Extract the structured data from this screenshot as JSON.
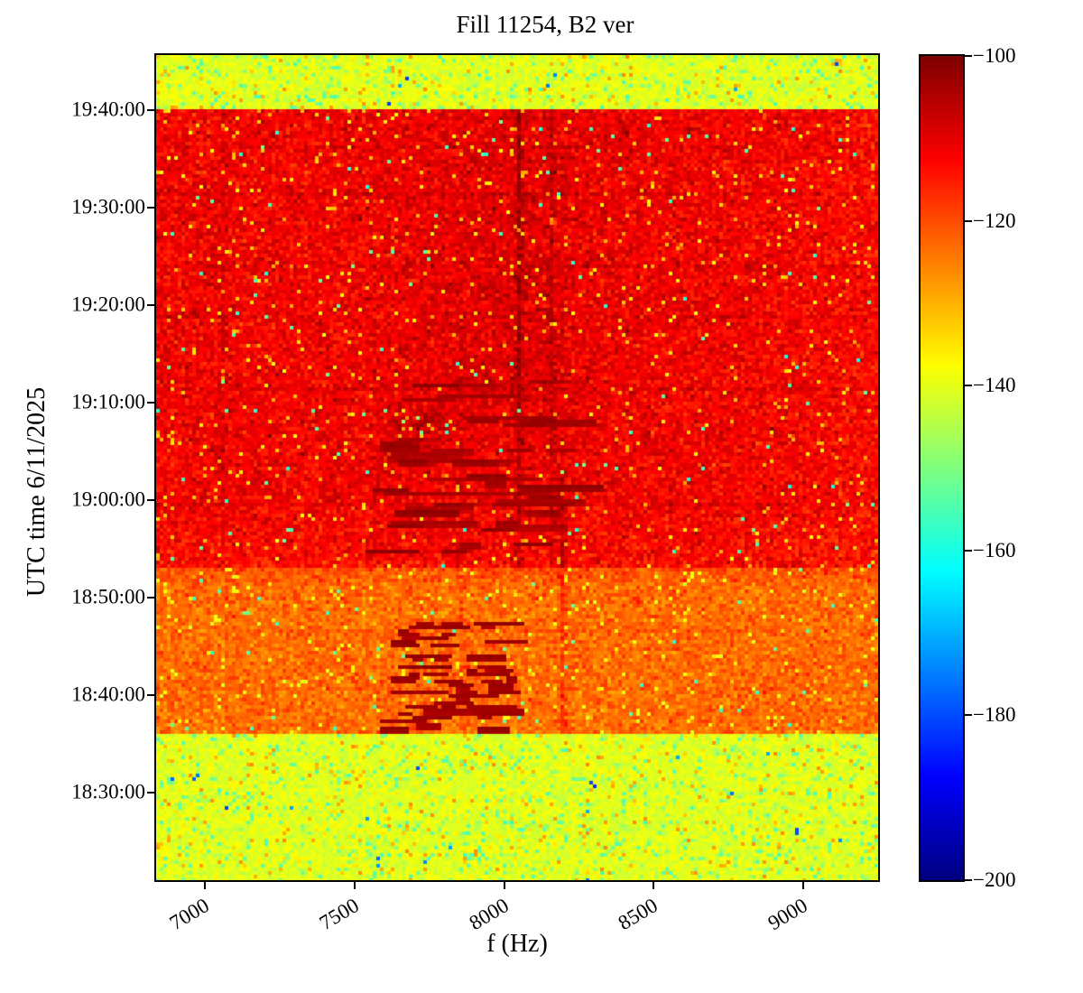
{
  "chart_data": {
    "type": "heatmap",
    "subtype": "spectrogram",
    "title": "Fill 11254, B2 ver",
    "xlabel": "f (Hz)",
    "ylabel": "UTC time 6/11/2025",
    "grid": false,
    "x_axis": {
      "range_hz": [
        6837,
        9250
      ],
      "ticks": [
        {
          "label": "7000",
          "hz": 7000
        },
        {
          "label": "7500",
          "hz": 7500
        },
        {
          "label": "8000",
          "hz": 8000
        },
        {
          "label": "8500",
          "hz": 8500
        },
        {
          "label": "9000",
          "hz": 9000
        }
      ]
    },
    "y_axis": {
      "date": "6/11/2025",
      "range_minutes": [
        1101.0,
        1185.6
      ],
      "ticks": [
        {
          "label": "19:40:00",
          "minutes": 1180
        },
        {
          "label": "19:30:00",
          "minutes": 1170
        },
        {
          "label": "19:20:00",
          "minutes": 1160
        },
        {
          "label": "19:10:00",
          "minutes": 1150
        },
        {
          "label": "19:00:00",
          "minutes": 1140
        },
        {
          "label": "18:50:00",
          "minutes": 1130
        },
        {
          "label": "18:40:00",
          "minutes": 1120
        },
        {
          "label": "18:30:00",
          "minutes": 1110
        }
      ]
    },
    "colorbar": {
      "colormap": "jet",
      "vmin": -200,
      "vmax": -100,
      "ticks": [
        {
          "label": "−100",
          "value": -100
        },
        {
          "label": "−120",
          "value": -120
        },
        {
          "label": "−140",
          "value": -140
        },
        {
          "label": "−160",
          "value": -160
        },
        {
          "label": "−180",
          "value": -180
        },
        {
          "label": "−200",
          "value": -200
        }
      ]
    },
    "bands": [
      {
        "name": "top-cold",
        "noise": "cold",
        "t_start": 1180.0,
        "t_end": 1185.6,
        "mean_db": -140.3
      },
      {
        "name": "hot",
        "noise": "hot",
        "t_start": 1132.9,
        "t_end": 1180.0,
        "mean_db": -111.8
      },
      {
        "name": "warm",
        "noise": "warm",
        "t_start": 1116.0,
        "t_end": 1132.9,
        "mean_db": -123.2
      },
      {
        "name": "bottom-cold",
        "noise": "cold",
        "t_start": 1101.0,
        "t_end": 1116.0,
        "mean_db": -140.3
      }
    ],
    "noise": {
      "hot": {
        "mean": -111.8,
        "sigma": 3.0,
        "speckles": [
          {
            "prob": 0.028,
            "value": -129,
            "spread": 9
          },
          {
            "prob": 0.005,
            "value": -151,
            "spread": 9
          },
          {
            "prob": 0.03,
            "value": -106,
            "spread": 3
          }
        ]
      },
      "warm": {
        "mean": -123.2,
        "sigma": 2.8,
        "speckles": [
          {
            "prob": 0.03,
            "value": -135,
            "spread": 6
          },
          {
            "prob": 0.006,
            "value": -150,
            "spread": 8
          },
          {
            "prob": 0.02,
            "value": -117,
            "spread": 3
          }
        ]
      },
      "cold": {
        "mean": -140.3,
        "sigma": 2.1,
        "speckles": [
          {
            "prob": 0.035,
            "value": -126,
            "spread": 7
          },
          {
            "prob": 0.08,
            "value": -147,
            "spread": 9
          },
          {
            "prob": 0.002,
            "value": -170,
            "spread": 14
          }
        ]
      }
    },
    "hot_shading": {
      "swath": {
        "f_center": 8020,
        "f_sigma": 230,
        "amp": 2.0,
        "t_full": 1152,
        "t_fade_to": 1140
      },
      "bottom_fade": {
        "t_start": 1140,
        "rate_db_per_min": 0.28
      },
      "right_fade": {
        "f_start": 8700,
        "rate_db_per_hz": 0.0022
      }
    },
    "features": {
      "vertical_lines": [
        {
          "f": 7060,
          "t_min": 1140.0,
          "t_max": 1180.0,
          "delta": 2.2,
          "soft": 0.3
        },
        {
          "f": 7862,
          "t_min": 1116.0,
          "t_max": 1158.8,
          "delta": 2.2,
          "soft": 0.3
        },
        {
          "f": 8049,
          "t_min": 1132.9,
          "t_max": 1180.0,
          "delta": 6.0,
          "soft": 0.45
        },
        {
          "f": 8161,
          "t_min": 1132.9,
          "t_max": 1180.0,
          "delta": 3.5,
          "soft": 0.35
        },
        {
          "f": 8191,
          "t_min": 1116.0,
          "t_max": 1143.0,
          "delta": 5.0,
          "soft": 0.45
        }
      ],
      "darker_rows": [
        {
          "t": 1176.3,
          "delta": 1.4
        },
        {
          "t": 1171.5,
          "delta": 1.8
        },
        {
          "t": 1163.9,
          "delta": 1.8
        },
        {
          "t": 1158.8,
          "delta": 1.6
        },
        {
          "t": 1151.3,
          "delta": 1.8
        },
        {
          "t": 1139.4,
          "delta": 1.6
        },
        {
          "t": 1126.4,
          "delta": 1.5
        },
        {
          "t": 1120.7,
          "delta": 1.5
        }
      ],
      "dash_clusters": [
        {
          "name": "mid-burst",
          "seed": 7,
          "count": 46,
          "f_min": 7570,
          "f_max": 8220,
          "len_min_hz": 60,
          "len_max_hz": 360,
          "t_min": 1134.5,
          "t_max": 1152.8,
          "value": -103.2,
          "value_spread": 1.6,
          "thick_frac": 0.4,
          "f_clamp": [
            7540,
            8330
          ]
        },
        {
          "name": "mid-burst-long",
          "seed": 11,
          "count": 7,
          "f_min": 7700,
          "f_max": 8050,
          "len_min_hz": 280,
          "len_max_hz": 430,
          "t_min": 1138.0,
          "t_max": 1150.0,
          "value": -104.5,
          "value_spread": 1.2,
          "thick_frac": 0.3,
          "f_clamp": [
            7540,
            8340
          ]
        },
        {
          "name": "early-burst",
          "seed": 23,
          "count": 62,
          "f_min": 7620,
          "f_max": 8040,
          "len_min_hz": 25,
          "len_max_hz": 190,
          "t_min": 1116.4,
          "t_max": 1127.4,
          "value": -102.8,
          "value_spread": 1.4,
          "thick_frac": 0.3,
          "f_clamp": [
            7580,
            8100
          ]
        }
      ],
      "blob": {
        "f": 7735,
        "t": 1147.7,
        "f_radius": 105,
        "t_radius": 2.3,
        "amp": 4.5
      }
    }
  }
}
